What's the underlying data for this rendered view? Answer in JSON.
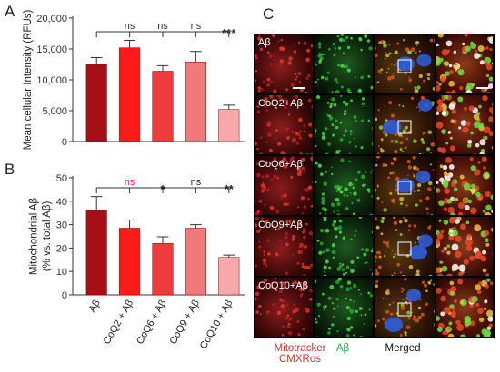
{
  "panels": {
    "A": "A",
    "B": "B",
    "C": "C"
  },
  "chart_data": [
    {
      "panel": "A",
      "type": "bar",
      "ylabel": "Mean cellular Intensity (RFUs)",
      "ylim": [
        0,
        20000
      ],
      "yticks": [
        0,
        5000,
        10000,
        15000,
        20000
      ],
      "ytick_labels": [
        "0",
        "5,000",
        "10,000",
        "15,000",
        "20,000"
      ],
      "categories": [
        "Aβ",
        "CoQ2 + Aβ",
        "CoQ6 + Aβ",
        "CoQ9 + Aβ",
        "CoQ10 + Aβ"
      ],
      "values": [
        12500,
        15200,
        11400,
        12900,
        5200
      ],
      "errors": [
        1100,
        1200,
        900,
        1700,
        700
      ],
      "significance": [
        "ns",
        "ns",
        "ns",
        "***"
      ],
      "colors": [
        "#a50f15",
        "#ff1a1a",
        "#ef3b3b",
        "#f07a7a",
        "#f7a8a8"
      ]
    },
    {
      "panel": "B",
      "type": "bar",
      "ylabel": "Mitochondrial Aβ (% vs. total Aβ)",
      "ylim": [
        0,
        50
      ],
      "yticks": [
        0,
        10,
        20,
        30,
        40,
        50
      ],
      "ytick_labels": [
        "0",
        "10",
        "20",
        "30",
        "40",
        "50"
      ],
      "categories": [
        "Aβ",
        "CoQ2 + Aβ",
        "CoQ6 + Aβ",
        "CoQ9 + Aβ",
        "CoQ10 + Aβ"
      ],
      "values": [
        36,
        28.5,
        22,
        28.5,
        16
      ],
      "errors": [
        6,
        3.5,
        2.8,
        1.5,
        1
      ],
      "significance": [
        "ns",
        "*",
        "ns",
        "**"
      ],
      "significance_colors": [
        "#e0245e",
        "#222222",
        "#222222",
        "#222222"
      ],
      "colors": [
        "#a50f15",
        "#ff1a1a",
        "#ef3b3b",
        "#f07a7a",
        "#f7a8a8"
      ]
    }
  ],
  "panel_c": {
    "rows": [
      "Aβ",
      "CoQ2+Aβ",
      "CoQ6+Aβ",
      "CoQ9+Aβ",
      "CoQ10+Aβ"
    ],
    "channels": [
      "Mitotracker CMXRos",
      "Aβ",
      "Merged"
    ],
    "legend": {
      "mito_line1": "Mitotracker",
      "mito_line2": "CMXRos",
      "abeta": "Aβ",
      "merged": "Merged"
    },
    "colors": {
      "mito": "#c0392b",
      "abeta": "#2ecc40",
      "merged": "#2f5bd3"
    }
  }
}
